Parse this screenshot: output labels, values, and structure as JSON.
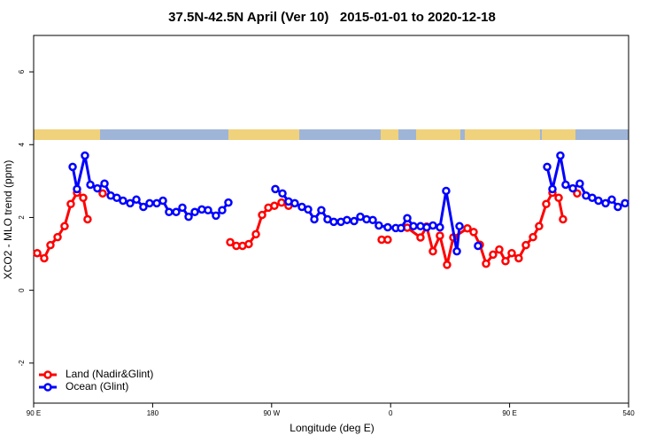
{
  "chart_data": {
    "type": "line",
    "title": "37.5N-42.5N April (Ver 10)   2015-01-01 to 2020-12-18",
    "x_label": "Longitude (deg E)",
    "y_label": "XCO2 - MLO trend (ppm)",
    "xlim": [
      90,
      540
    ],
    "xticks": [
      {
        "value": 90,
        "label": "90 E"
      },
      180,
      {
        "value": 270,
        "label": "90 W"
      },
      {
        "value": 360,
        "label": "0"
      },
      {
        "value": 450,
        "label": "90 E"
      },
      540
    ],
    "ylim": [
      -3.1,
      7.0
    ],
    "yticks": [
      -2,
      0,
      2,
      4,
      6
    ],
    "legend": "bottom-left",
    "series": [
      {
        "name": "Land (Nadir&Glint)",
        "color": "#ff0000",
        "x": [
          92.7,
          98,
          102.7,
          108.1,
          113.4,
          118.1,
          122.8,
          127.5,
          130.8,
          null,
          142.2,
          null,
          238.7,
          243.3,
          248,
          252.7,
          258.1,
          262.8,
          267.5,
          272.1,
          277.5,
          282.8,
          null,
          353.2,
          357.8,
          null,
          372.6,
          382.6,
          387.3,
          392,
          397.3,
          402.7,
          407.4,
          418.1,
          422.8,
          427.5,
          432.2,
          437.5,
          442.2,
          446.9,
          451.6,
          456.9,
          462.3,
          467.7,
          472.3,
          477.7,
          482.4,
          487.1,
          490.4,
          null,
          501.1
        ],
        "values": [
          1.02,
          0.88,
          1.24,
          1.46,
          1.76,
          2.37,
          2.68,
          2.54,
          1.95,
          null,
          2.66,
          null,
          1.32,
          1.22,
          1.22,
          1.27,
          1.54,
          2.07,
          2.27,
          2.32,
          2.41,
          2.32,
          null,
          1.39,
          1.39,
          null,
          1.72,
          1.45,
          1.75,
          1.07,
          1.5,
          0.7,
          1.45,
          1.7,
          1.6,
          1.25,
          0.73,
          0.98,
          1.12,
          0.8,
          1.02,
          0.88,
          1.24,
          1.46,
          1.76,
          2.37,
          2.68,
          2.54,
          1.95,
          null,
          2.66
        ]
      },
      {
        "name": "Ocean (Glint)",
        "color": "#0000ff",
        "x": [
          119.5,
          122.8,
          128.8,
          132.9,
          138.2,
          143.6,
          148.3,
          152.9,
          157.6,
          163,
          167.7,
          173,
          177.7,
          183.1,
          187.8,
          192.4,
          197.8,
          202.5,
          207.2,
          211.9,
          217.2,
          221.9,
          227.9,
          232.6,
          237.3,
          null,
          272.8,
          278.2,
          282.8,
          287.5,
          292.9,
          297.6,
          302.3,
          307.6,
          312.3,
          317,
          322.4,
          327,
          332.4,
          337.1,
          341.8,
          346.5,
          351.1,
          357.8,
          363.9,
          367.9,
          372.6,
          377.3,
          382.6,
          387.3,
          392,
          397.3,
          402,
          410.1,
          412.1,
          null,
          426.1,
          null,
          478.4,
          482.4,
          488.4,
          492.4,
          497.8,
          503.1,
          507.8,
          512.5,
          517.2,
          522.6,
          527.3,
          531.9,
          537.3
        ],
        "values": [
          3.39,
          2.78,
          3.7,
          2.9,
          2.8,
          2.93,
          2.6,
          2.54,
          2.46,
          2.39,
          2.49,
          2.29,
          2.39,
          2.39,
          2.46,
          2.15,
          2.15,
          2.27,
          2.02,
          2.15,
          2.22,
          2.2,
          2.05,
          2.2,
          2.41,
          null,
          2.78,
          2.66,
          2.44,
          2.39,
          2.29,
          2.22,
          1.95,
          2.2,
          1.95,
          1.88,
          1.88,
          1.93,
          1.9,
          2.02,
          1.95,
          1.93,
          1.78,
          1.73,
          1.71,
          1.71,
          1.98,
          1.76,
          1.76,
          1.73,
          1.78,
          1.73,
          2.73,
          1.07,
          1.76,
          null,
          1.22,
          null,
          3.39,
          2.78,
          3.7,
          2.9,
          2.8,
          2.93,
          2.6,
          2.54,
          2.46,
          2.39,
          2.49,
          2.29,
          2.39
        ]
      }
    ]
  }
}
